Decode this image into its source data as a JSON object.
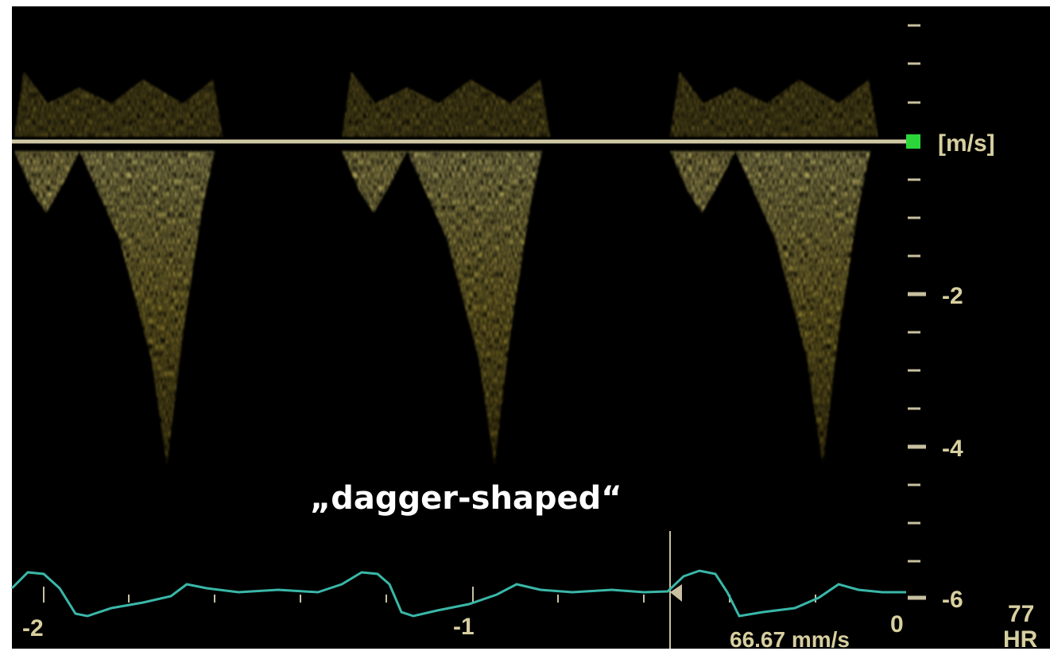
{
  "scale": {
    "unit": "[m/s]",
    "labels": [
      "-2",
      "-4",
      "-6"
    ]
  },
  "time_axis": {
    "labels": [
      "-2",
      "-1",
      "0"
    ]
  },
  "annotation": "„dagger-shaped“",
  "sweep_speed": "66.67 mm/s",
  "heart_rate": {
    "value": "77",
    "label": "HR"
  }
}
